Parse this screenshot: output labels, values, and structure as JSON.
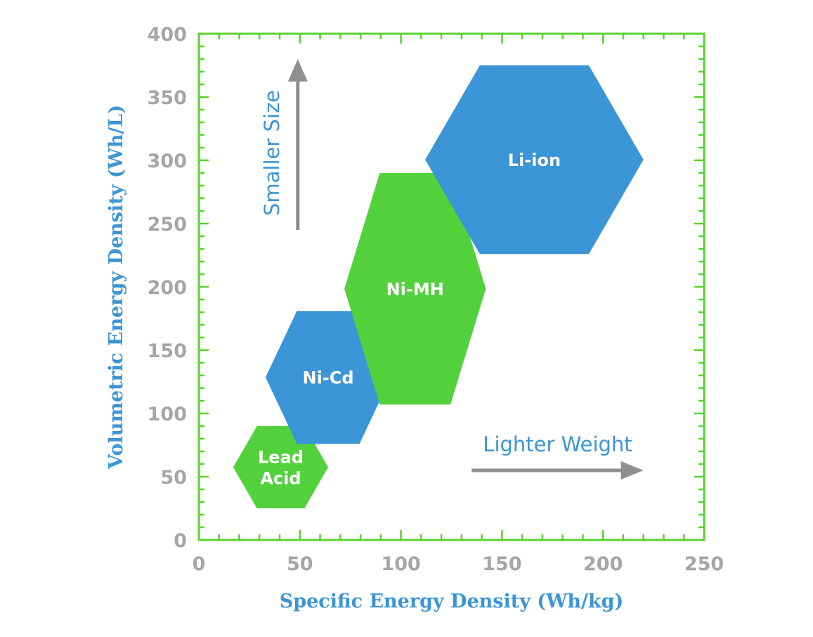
{
  "chart_data": {
    "type": "scatter",
    "xlabel": "Specific Energy Density (Wh/kg)",
    "ylabel": "Volumetric Energy Density (Wh/L)",
    "xlim": [
      0,
      250
    ],
    "ylim": [
      0,
      400
    ],
    "x_ticks": [
      0,
      50,
      100,
      150,
      200,
      250
    ],
    "y_ticks": [
      0,
      50,
      100,
      150,
      200,
      250,
      300,
      350,
      400
    ],
    "grid": false,
    "regions": [
      {
        "label_lines": [
          "Lead",
          "Acid"
        ],
        "x_range": [
          17,
          64
        ],
        "y_range": [
          25,
          90
        ],
        "color": "#53d13d"
      },
      {
        "label_lines": [
          "Ni-Cd"
        ],
        "x_range": [
          33,
          95
        ],
        "y_range": [
          76,
          181
        ],
        "color": "#3b95d6"
      },
      {
        "label_lines": [
          "Ni-MH"
        ],
        "x_range": [
          72,
          142
        ],
        "y_range": [
          107,
          290
        ],
        "color": "#53d13d"
      },
      {
        "label_lines": [
          "Li-ion"
        ],
        "x_range": [
          112,
          220
        ],
        "y_range": [
          226,
          375
        ],
        "color": "#3b95d6"
      }
    ],
    "annotations": [
      {
        "text": "Smaller Size",
        "direction": "up",
        "x": 50,
        "y_range": [
          245,
          380
        ]
      },
      {
        "text": "Lighter Weight",
        "direction": "right",
        "y": 55,
        "x_range": [
          135,
          220
        ]
      }
    ]
  },
  "colors": {
    "frame": "#59d130",
    "tick_text": "#a6a6a6",
    "axis_title": "#3b95d6",
    "arrow": "#8f8f8f",
    "annotation_text": "#3b95d6"
  }
}
